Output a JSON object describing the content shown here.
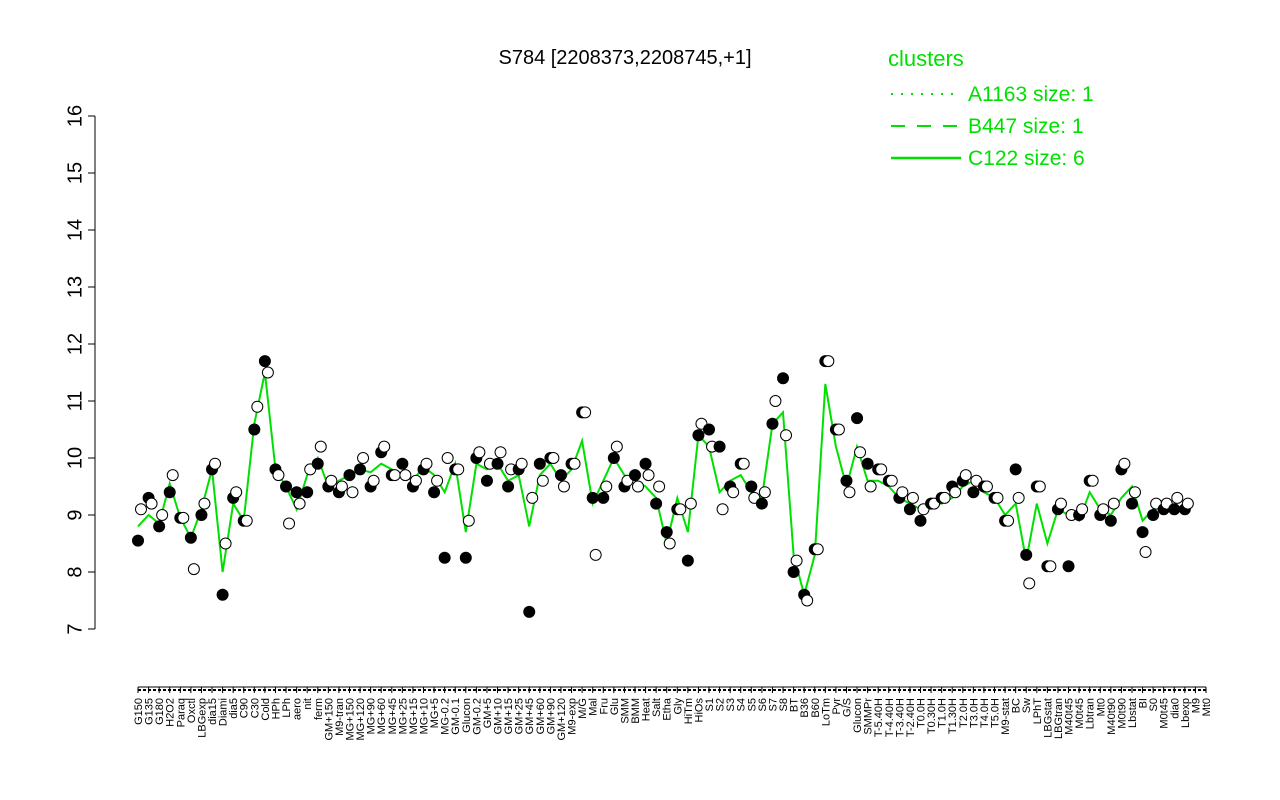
{
  "chart_data": {
    "type": "line",
    "title": "S784 [2208373,2208745,+1]",
    "xlabel": "",
    "ylabel": "",
    "ylim": [
      7,
      16
    ],
    "yticks": [
      7,
      8,
      9,
      10,
      11,
      12,
      13,
      14,
      15,
      16
    ],
    "grid": false,
    "point_fill": "#ffffff",
    "point_fill_dark": "#000000",
    "line_color": "#00e000",
    "legend": {
      "position": "top-right",
      "title": "clusters",
      "color": "#00e000",
      "entries": [
        {
          "label": "A1163 size: 1",
          "style": "dotted"
        },
        {
          "label": "B447 size: 1",
          "style": "dashed"
        },
        {
          "label": "C122 size: 6",
          "style": "solid"
        }
      ]
    },
    "x_labels": [
      "G150",
      "G135",
      "G180",
      "H2O2",
      "Paraq",
      "Oxctl",
      "LBGexp",
      "dia15",
      "Diami",
      "dia5",
      "C90",
      "C30",
      "Cold",
      "HPh",
      "LPh",
      "aero",
      "nit",
      "ferm",
      "GM+150",
      "M9-tran",
      "MG+150",
      "MG+120",
      "MG+90",
      "MG+60",
      "MG+45",
      "MG+25",
      "MG+15",
      "MG+10",
      "MG+5",
      "MG-0.2",
      "GM-0.1",
      "Glucon",
      "GM-0.2",
      "GM+5",
      "GM+10",
      "GM+15",
      "GM+25",
      "GM+45",
      "GM+60",
      "GM+90",
      "GM+120",
      "M9-exp",
      "M/G",
      "Mal",
      "Fru",
      "Glu",
      "SMM",
      "BMM",
      "Heat",
      "Salt",
      "Etha",
      "Gly",
      "HiTm",
      "HiOs",
      "S1",
      "S2",
      "S3",
      "S4",
      "S5",
      "S6",
      "S7",
      "S8",
      "BT",
      "B36",
      "B60",
      "LoTm",
      "Pyr",
      "G/S",
      "Glucon",
      "SMMPr",
      "T-5.40H",
      "T-4.40H",
      "T-3.40H",
      "T-2.40H",
      "T0.0H",
      "T0.30H",
      "T1.0H",
      "T1.30H",
      "T2.0H",
      "T3.0H",
      "T4.0H",
      "T5.0H",
      "M9-stat",
      "BC",
      "Sw",
      "LPhT",
      "LBGstat",
      "LBGtran",
      "M40t45",
      "M0t45",
      "Lbtran",
      "Mt0",
      "M40t90",
      "M0t90",
      "Lbstat",
      "BI",
      "S0",
      "M0t45",
      "dia0",
      "Lbexp",
      "M9",
      "Mt0"
    ],
    "x_labels_shown": [
      "G150",
      "G135",
      "G180",
      "H2O2",
      "Paraq",
      "Oxctl",
      "LBGexp",
      "dia15",
      "Diami",
      "dia5",
      "C90",
      "C30",
      "Cold",
      "HPh",
      "LPh",
      "aero",
      "nit",
      "ferm",
      "GM+150",
      "M9-tran",
      "MG+150",
      "MG+120",
      "MG+90",
      "MG+60",
      "MG+45",
      "MG+25",
      "MG+15",
      "MG+10",
      "MG+5",
      "MG-0.2",
      "GM-0.1",
      "Glucon",
      "GM-0.2",
      "GM+5",
      "GM+10",
      "GM+15",
      "GM+25",
      "GM+45",
      "GM+60",
      "GM+90",
      "GM+120",
      "M9-exp",
      "M/G",
      "Mal",
      "Fru",
      "Glu",
      "SMM",
      "BMM",
      "Heat",
      "Salt",
      "Etha",
      "Gly",
      "HiTm",
      "HiOs",
      "S1",
      "S2",
      "S3",
      "S4",
      "S5",
      "S6",
      "S7",
      "S8",
      "BT",
      "B36",
      "B60",
      "LoTm",
      "Pyr",
      "G/S",
      "Glucon",
      "SMMPr",
      "T-5.40H",
      "T-4.40H",
      "T-3.40H",
      "T-2.40H",
      "T0.0H",
      "T0.30H",
      "T1.0H",
      "T1.30H",
      "T2.0H",
      "T3.0H",
      "T4.0H",
      "T5.0H",
      "M9-stat",
      "BC",
      "Sw",
      "LPhT",
      "LBGstat",
      "LBGtran",
      "M40t45",
      "M0t45",
      "Lbtran",
      "Mt0",
      "M40t90",
      "M0t90",
      "Lbstat",
      "BI",
      "S0",
      "M0t45",
      "dia0",
      "Lbexp",
      "M9",
      "Mt0"
    ],
    "series": [
      {
        "style": "solid",
        "x": [
          1,
          2,
          3,
          4,
          5,
          6,
          7,
          8,
          9,
          10,
          11,
          12,
          13,
          14,
          15,
          16,
          17,
          18,
          19,
          20,
          21,
          22,
          23,
          24,
          25,
          26,
          27,
          28,
          29,
          30,
          31,
          32,
          33,
          34,
          35,
          36,
          37,
          38,
          39,
          40,
          41,
          42,
          43,
          44,
          45,
          46,
          47,
          48,
          49,
          50,
          51,
          52,
          53,
          54,
          55,
          56,
          57,
          58,
          59,
          60,
          61,
          62,
          63,
          64,
          65,
          66,
          67,
          68,
          69,
          70,
          71,
          72,
          73,
          74,
          75,
          76,
          77,
          78,
          79,
          80,
          81,
          82,
          83,
          84,
          85,
          86,
          87,
          88,
          89,
          90,
          91,
          92,
          93,
          94,
          95,
          96,
          97,
          98,
          99,
          100
        ],
        "y": [
          8.8,
          9.0,
          8.85,
          9.55,
          8.95,
          8.6,
          9.1,
          9.8,
          8.0,
          9.2,
          8.9,
          10.6,
          11.5,
          9.8,
          9.5,
          9.1,
          9.7,
          10.0,
          9.5,
          9.6,
          9.7,
          9.8,
          9.75,
          9.9,
          9.8,
          9.7,
          9.6,
          9.85,
          9.7,
          9.4,
          9.9,
          8.7,
          9.9,
          9.8,
          9.9,
          9.6,
          9.7,
          8.8,
          9.7,
          9.9,
          9.6,
          9.8,
          10.3,
          9.2,
          9.6,
          10.0,
          9.7,
          9.6,
          9.5,
          9.3,
          8.5,
          9.3,
          8.7,
          10.4,
          10.2,
          9.4,
          9.6,
          9.7,
          9.4,
          9.3,
          10.6,
          10.8,
          8.3,
          7.6,
          8.3,
          11.3,
          10.2,
          9.5,
          10.2,
          9.6,
          9.6,
          9.5,
          9.3,
          9.2,
          9.1,
          9.2,
          9.2,
          9.3,
          9.5,
          9.6,
          9.4,
          9.3,
          9.0,
          9.2,
          8.2,
          9.2,
          8.5,
          9.1,
          9.0,
          8.9,
          9.4,
          9.1,
          9.0,
          9.3,
          9.5,
          8.9,
          9.1,
          9.2,
          9.1,
          9.1
        ]
      }
    ],
    "points": {
      "x": [
        1,
        2,
        3,
        4,
        5,
        6,
        7,
        8,
        9,
        10,
        11,
        12,
        13,
        14,
        15,
        16,
        17,
        18,
        19,
        20,
        21,
        22,
        23,
        24,
        25,
        26,
        27,
        28,
        29,
        30,
        31,
        32,
        33,
        34,
        35,
        36,
        37,
        38,
        39,
        40,
        41,
        42,
        43,
        44,
        45,
        46,
        47,
        48,
        49,
        50,
        51,
        52,
        53,
        54,
        55,
        56,
        57,
        58,
        59,
        60,
        61,
        62,
        63,
        64,
        65,
        66,
        67,
        68,
        69,
        70,
        71,
        72,
        73,
        74,
        75,
        76,
        77,
        78,
        79,
        80,
        81,
        82,
        83,
        84,
        85,
        86,
        87,
        88,
        89,
        90,
        91,
        92,
        93,
        94,
        95,
        96,
        97,
        98,
        99,
        100
      ],
      "y_open": [
        9.1,
        9.2,
        9.0,
        9.7,
        8.95,
        8.05,
        9.2,
        9.9,
        8.5,
        9.4,
        8.9,
        10.9,
        11.5,
        9.7,
        8.85,
        9.2,
        9.8,
        10.2,
        9.6,
        9.5,
        9.4,
        10.0,
        9.6,
        10.2,
        9.7,
        9.7,
        9.6,
        9.9,
        9.6,
        10.0,
        9.8,
        8.9,
        10.1,
        9.9,
        10.1,
        9.8,
        9.9,
        9.3,
        9.6,
        10.0,
        9.5,
        9.9,
        10.8,
        8.3,
        9.5,
        10.2,
        9.6,
        9.5,
        9.7,
        9.5,
        8.5,
        9.1,
        9.2,
        10.6,
        10.2,
        9.1,
        9.4,
        9.9,
        9.3,
        9.4,
        11.0,
        10.4,
        8.2,
        7.5,
        8.4,
        11.7,
        10.5,
        9.4,
        10.1,
        9.5,
        9.8,
        9.6,
        9.4,
        9.3,
        9.1,
        9.2,
        9.3,
        9.4,
        9.7,
        9.6,
        9.5,
        9.3,
        8.9,
        9.3,
        7.8,
        9.5,
        8.1,
        9.2,
        9.0,
        9.1,
        9.6,
        9.1,
        9.2,
        9.9,
        9.4,
        8.35,
        9.2,
        9.2,
        9.3,
        9.2
      ],
      "y_filled": [
        8.55,
        9.3,
        8.8,
        9.4,
        8.95,
        8.6,
        9.0,
        9.8,
        7.6,
        9.3,
        8.9,
        10.5,
        11.7,
        9.8,
        9.5,
        9.4,
        9.4,
        9.9,
        9.5,
        9.4,
        9.7,
        9.8,
        9.5,
        10.1,
        9.7,
        9.9,
        9.5,
        9.8,
        9.4,
        8.25,
        9.8,
        8.25,
        10.0,
        9.6,
        9.9,
        9.5,
        9.8,
        7.3,
        9.9,
        10.0,
        9.7,
        9.9,
        10.8,
        9.3,
        9.3,
        10.0,
        9.5,
        9.7,
        9.9,
        9.2,
        8.7,
        9.1,
        8.2,
        10.4,
        10.5,
        10.2,
        9.5,
        9.9,
        9.5,
        9.2,
        10.6,
        11.4,
        8.0,
        7.6,
        8.4,
        11.7,
        10.5,
        9.6,
        10.7,
        9.9,
        9.8,
        9.6,
        9.3,
        9.1,
        8.9,
        9.2,
        9.3,
        9.5,
        9.6,
        9.4,
        9.5,
        9.3,
        8.9,
        9.8,
        8.3,
        9.5,
        8.1,
        9.1,
        8.1,
        9.0,
        9.6,
        9.0,
        8.9,
        9.8,
        9.2,
        8.7,
        9.0,
        9.1,
        9.1,
        9.1
      ]
    }
  }
}
